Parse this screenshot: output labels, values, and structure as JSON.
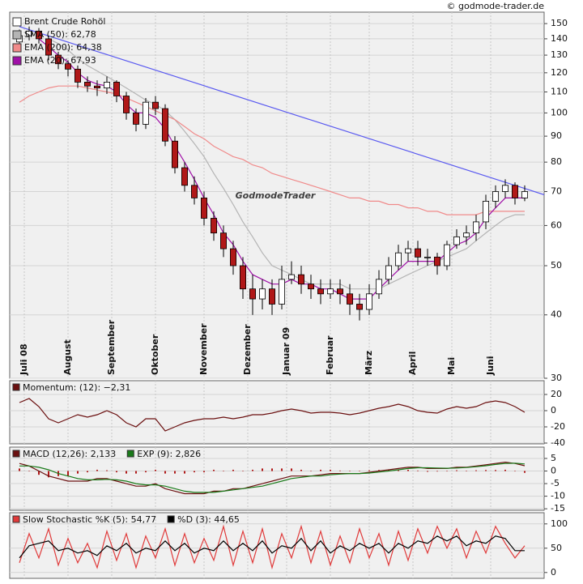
{
  "chart_data": [
    {
      "type": "candlestick",
      "name": "Brent Crude Rohöl",
      "source": "© godmode-trader.de",
      "watermark": "GodmodeTrader",
      "up_color": "#ffffff",
      "down_color": "#b01818",
      "log_scale": true,
      "grid": true,
      "x": [
        0,
        1,
        2,
        3,
        4,
        5,
        6,
        7,
        8,
        9,
        10,
        11,
        12,
        13,
        14,
        15,
        16,
        17,
        18,
        19,
        20,
        21,
        22,
        23,
        24,
        25,
        26,
        27,
        28,
        29,
        30,
        31,
        32,
        33,
        34,
        35,
        36,
        37,
        38,
        39,
        40,
        41,
        42,
        43,
        44,
        45,
        46,
        47,
        48,
        49,
        50,
        51,
        52
      ],
      "open": [
        138,
        142,
        145,
        140,
        130,
        125,
        122,
        115,
        113,
        112,
        115,
        108,
        100,
        95,
        105,
        102,
        88,
        78,
        72,
        68,
        62,
        58,
        54,
        50,
        45,
        43,
        45,
        42,
        47,
        48,
        46,
        45,
        44,
        45,
        44,
        42,
        41,
        44,
        47,
        50,
        53,
        54,
        52,
        52,
        50,
        55,
        57,
        58,
        61,
        67,
        70,
        72,
        68
      ],
      "high": [
        146,
        148,
        147,
        142,
        132,
        127,
        124,
        118,
        116,
        118,
        116,
        110,
        102,
        107,
        108,
        104,
        90,
        80,
        75,
        70,
        64,
        60,
        56,
        52,
        48,
        47,
        47,
        50,
        51,
        50,
        48,
        47,
        47,
        47,
        46,
        44,
        46,
        49,
        52,
        55,
        56,
        56,
        54,
        53,
        56,
        59,
        60,
        63,
        69,
        72,
        74,
        73,
        72
      ],
      "low": [
        136,
        139,
        137,
        127,
        122,
        118,
        112,
        110,
        108,
        109,
        105,
        97,
        92,
        93,
        99,
        86,
        76,
        70,
        66,
        60,
        56,
        52,
        48,
        43,
        40,
        41,
        40,
        41,
        46,
        44,
        43,
        42,
        43,
        42,
        40,
        39,
        40,
        43,
        46,
        49,
        51,
        50,
        50,
        48,
        49,
        54,
        55,
        56,
        59,
        65,
        68,
        66,
        67
      ],
      "close": [
        142,
        145,
        140,
        130,
        125,
        122,
        115,
        113,
        112,
        115,
        108,
        100,
        95,
        105,
        102,
        88,
        78,
        72,
        68,
        62,
        58,
        54,
        50,
        45,
        43,
        45,
        42,
        47,
        48,
        46,
        45,
        44,
        45,
        44,
        42,
        41,
        44,
        47,
        50,
        53,
        54,
        52,
        52,
        50,
        55,
        57,
        58,
        61,
        67,
        70,
        72,
        68,
        70
      ],
      "series": [
        {
          "name": "SMA (50): 62,78",
          "color": "#b4b4b4",
          "values": [
            null,
            null,
            null,
            140,
            137,
            133,
            128,
            124,
            121,
            118,
            115,
            112,
            109,
            106,
            104,
            101,
            97,
            92,
            87,
            82,
            76,
            71,
            66,
            61,
            57,
            53,
            50,
            49,
            48,
            47,
            46,
            46,
            46,
            46,
            45,
            45,
            45,
            45,
            46,
            47,
            48,
            49,
            50,
            51,
            52,
            53,
            54,
            56,
            58,
            60,
            62,
            63,
            63
          ]
        },
        {
          "name": "EMA (200): 64,38",
          "color": "#f08a8a",
          "values": [
            105,
            108,
            110,
            112,
            113,
            113,
            113,
            112,
            111,
            110,
            109,
            107,
            105,
            103,
            101,
            99,
            97,
            94,
            91,
            89,
            86,
            84,
            82,
            81,
            79,
            78,
            76,
            75,
            74,
            73,
            72,
            71,
            70,
            69,
            68,
            68,
            67,
            67,
            66,
            66,
            65,
            65,
            64,
            64,
            63,
            63,
            63,
            63,
            64,
            64,
            64,
            64,
            64
          ]
        },
        {
          "name": "EMA (20): 67,93",
          "color": "#a010a8",
          "values": [
            null,
            null,
            140,
            135,
            130,
            126,
            120,
            116,
            114,
            113,
            110,
            104,
            100,
            100,
            98,
            93,
            86,
            80,
            74,
            68,
            63,
            58,
            55,
            51,
            48,
            47,
            46,
            46,
            47,
            46,
            46,
            45,
            45,
            44,
            43,
            43,
            43,
            45,
            47,
            49,
            51,
            51,
            51,
            51,
            53,
            55,
            56,
            58,
            62,
            65,
            68,
            68,
            68
          ]
        }
      ],
      "trendline": {
        "color": "#5a5af0",
        "x": [
          0,
          54
        ],
        "values": [
          148,
          69
        ]
      },
      "xlim": [
        -1,
        54
      ],
      "xticks": [
        {
          "value": 0.5,
          "label": "Juli 08"
        },
        {
          "value": 5,
          "label": "August"
        },
        {
          "value": 9.5,
          "label": "September"
        },
        {
          "value": 14,
          "label": "Oktober"
        },
        {
          "value": 19,
          "label": "November"
        },
        {
          "value": 23.5,
          "label": "Dezember"
        },
        {
          "value": 27.5,
          "label": "Januar 09"
        },
        {
          "value": 32,
          "label": "Februar"
        },
        {
          "value": 36,
          "label": "März"
        },
        {
          "value": 40.5,
          "label": "April"
        },
        {
          "value": 44.5,
          "label": "Mai"
        },
        {
          "value": 48.5,
          "label": "Juni"
        }
      ],
      "ylim": [
        30,
        158
      ],
      "yticks": [
        30,
        40,
        50,
        60,
        70,
        80,
        90,
        100,
        110,
        120,
        130,
        140,
        150
      ]
    },
    {
      "type": "line",
      "grid": true,
      "ylim": [
        -41,
        37
      ],
      "yticks": [
        20,
        0,
        -20,
        -40
      ],
      "series": [
        {
          "name": "Momentum: (12): −2,31",
          "color": "#6b1010",
          "values": [
            10,
            15,
            5,
            -10,
            -15,
            -10,
            -5,
            -8,
            -5,
            0,
            -5,
            -15,
            -20,
            -10,
            -10,
            -25,
            -20,
            -15,
            -12,
            -10,
            -10,
            -8,
            -10,
            -8,
            -5,
            -5,
            -3,
            0,
            2,
            0,
            -3,
            -2,
            -2,
            -3,
            -5,
            -3,
            0,
            3,
            5,
            8,
            5,
            0,
            -2,
            -3,
            2,
            5,
            3,
            5,
            10,
            12,
            10,
            5,
            -2
          ]
        }
      ]
    },
    {
      "type": "line",
      "grid": true,
      "ylim": [
        -15.6,
        9.5
      ],
      "yticks": [
        5,
        0,
        -5,
        -10,
        -15
      ],
      "series": [
        {
          "type": "bar",
          "color": "#b01818",
          "values": [
            1,
            0,
            -1.5,
            -2.5,
            -2,
            -2,
            -1,
            -0.5,
            0.5,
            0.3,
            -0.5,
            -1,
            -1,
            -0.5,
            0.5,
            -1,
            -1,
            -1,
            -0.5,
            -0.5,
            0.5,
            0,
            0.5,
            0,
            0.5,
            1,
            1,
            1,
            1,
            0.5,
            0,
            0.5,
            0.5,
            0.2,
            0,
            0,
            0.3,
            0.4,
            0.5,
            0.5,
            0.5,
            0.2,
            -0.3,
            -0.2,
            -0.1,
            0.3,
            0.1,
            0.3,
            0.4,
            0.4,
            0.5,
            -0.1,
            -0.7
          ]
        },
        {
          "name": "MACD (12,26): 2,133",
          "color": "#6b1010",
          "values": [
            3,
            2,
            0,
            -2,
            -3,
            -4,
            -4,
            -4,
            -3,
            -3,
            -4,
            -5,
            -6,
            -6,
            -5,
            -7,
            -8,
            -9,
            -9,
            -9,
            -8,
            -8,
            -7,
            -7,
            -6,
            -5,
            -4,
            -3,
            -2,
            -2,
            -2,
            -1.5,
            -1,
            -1,
            -1,
            -1,
            -0.5,
            0,
            0.5,
            1,
            1.5,
            1.5,
            1,
            1,
            1,
            1.5,
            1.5,
            2,
            2.5,
            3,
            3.5,
            3,
            2.1
          ]
        },
        {
          "name": "EXP (9): 2,826",
          "color": "#1a7a1a",
          "values": [
            2,
            2,
            1.5,
            0.5,
            -1,
            -2,
            -3,
            -3.5,
            -3.5,
            -3.3,
            -3.5,
            -4,
            -5,
            -5.5,
            -5.5,
            -6,
            -7,
            -8,
            -8.5,
            -8.5,
            -8.5,
            -8,
            -7.5,
            -7,
            -6.5,
            -6,
            -5,
            -4,
            -3,
            -2.5,
            -2,
            -2,
            -1.5,
            -1.2,
            -1,
            -1,
            -0.8,
            -0.4,
            0,
            0.5,
            1,
            1.3,
            1.3,
            1.2,
            1.1,
            1.2,
            1.4,
            1.7,
            2.1,
            2.6,
            3,
            3.1,
            2.8
          ]
        }
      ]
    },
    {
      "type": "line",
      "grid": true,
      "ylim": [
        -12,
        123
      ],
      "yticks": [
        100,
        50,
        0
      ],
      "series": [
        {
          "name": "Slow Stochastic %K (5): 54,77",
          "color": "#e03a3a",
          "values": [
            20,
            80,
            30,
            90,
            15,
            70,
            20,
            60,
            10,
            85,
            25,
            80,
            10,
            75,
            30,
            90,
            15,
            80,
            20,
            70,
            25,
            95,
            15,
            85,
            20,
            90,
            10,
            80,
            30,
            95,
            20,
            85,
            15,
            75,
            20,
            90,
            30,
            80,
            15,
            85,
            25,
            90,
            40,
            95,
            50,
            90,
            30,
            85,
            40,
            95,
            60,
            30,
            55
          ]
        },
        {
          "name": "%D (3): 44,65",
          "color": "#000000",
          "values": [
            30,
            55,
            60,
            65,
            45,
            50,
            40,
            45,
            35,
            55,
            45,
            60,
            40,
            50,
            45,
            65,
            45,
            60,
            40,
            50,
            45,
            65,
            45,
            60,
            45,
            65,
            40,
            55,
            50,
            70,
            45,
            65,
            40,
            55,
            45,
            60,
            50,
            60,
            40,
            60,
            50,
            65,
            60,
            75,
            65,
            75,
            55,
            65,
            60,
            75,
            70,
            45,
            45
          ]
        }
      ]
    }
  ]
}
